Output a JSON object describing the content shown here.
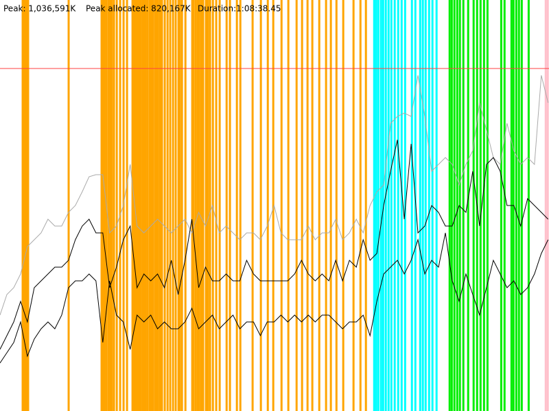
{
  "chart_data": {
    "type": "line",
    "peak": "Peak: 1,036,591K",
    "peak_allocated": "Peak allocated: 820,167K",
    "duration": "Duration:1:08:38.45",
    "xlim": [
      0,
      4118.45
    ],
    "ylim": [
      0,
      1200000
    ],
    "threshold": {
      "value": 1000000,
      "color": "#ff4040"
    },
    "x": [
      0,
      51.4,
      102.8,
      154.2,
      205.6,
      257,
      308.4,
      359.8,
      411.2,
      462.6,
      514,
      565.4,
      616.8,
      668.2,
      719.6,
      771,
      822.4,
      873.8,
      925.2,
      976.6,
      1028,
      1079.4,
      1130.8,
      1182.2,
      1233.6,
      1285,
      1336.4,
      1387.8,
      1439.2,
      1490.6,
      1542,
      1593.4,
      1644.8,
      1696.2,
      1747.6,
      1799,
      1850.4,
      1901.8,
      1953.2,
      2004.6,
      2056,
      2107.4,
      2158.8,
      2210.2,
      2261.6,
      2313,
      2364.4,
      2415.8,
      2467.2,
      2518.6,
      2570,
      2621.4,
      2672.8,
      2724.2,
      2775.6,
      2827,
      2878.4,
      2929.8,
      2981.2,
      3032.6,
      3084,
      3135.4,
      3186.8,
      3238.2,
      3289.6,
      3341,
      3392.4,
      3443.8,
      3495.2,
      3546.6,
      3598,
      3649.4,
      3700.8,
      3752.2,
      3803.6,
      3855,
      3906.4,
      3957.8,
      4009.2,
      4060.6,
      4112
    ],
    "series": [
      {
        "color": "#aaaaaa",
        "values": [
          280000,
          340000,
          360000,
          400000,
          480000,
          500000,
          520000,
          560000,
          540000,
          540000,
          580000,
          600000,
          640000,
          684000,
          690000,
          690000,
          520000,
          540000,
          600000,
          720000,
          540000,
          520000,
          540000,
          560000,
          540000,
          520000,
          540000,
          560000,
          520000,
          580000,
          540000,
          600000,
          520000,
          540000,
          520000,
          500000,
          520000,
          520000,
          500000,
          540000,
          600000,
          520000,
          500000,
          500000,
          500000,
          540000,
          500000,
          520000,
          520000,
          560000,
          500000,
          520000,
          560000,
          520000,
          600000,
          640000,
          660000,
          840000,
          860000,
          870000,
          860000,
          980000,
          860000,
          700000,
          720000,
          740000,
          720000,
          660000,
          720000,
          760000,
          900000,
          820000,
          740000,
          720000,
          840000,
          760000,
          720000,
          740000,
          720000,
          980000,
          900000
        ]
      },
      {
        "color": "#000000",
        "values": [
          180000,
          220000,
          260000,
          320000,
          260000,
          360000,
          380000,
          400000,
          420000,
          420000,
          440000,
          500000,
          540000,
          560000,
          520000,
          520000,
          360000,
          420000,
          500000,
          540000,
          360000,
          400000,
          380000,
          400000,
          360000,
          440000,
          340000,
          440000,
          560000,
          360000,
          420000,
          380000,
          380000,
          400000,
          380000,
          380000,
          440000,
          400000,
          380000,
          380000,
          380000,
          380000,
          380000,
          400000,
          440000,
          400000,
          380000,
          400000,
          380000,
          440000,
          380000,
          440000,
          420000,
          500000,
          440000,
          460000,
          600000,
          700000,
          792000,
          560000,
          780000,
          520000,
          540000,
          600000,
          580000,
          540000,
          540000,
          600000,
          580000,
          700000,
          540000,
          720000,
          740000,
          700000,
          600000,
          600000,
          540000,
          620000,
          600000,
          580000,
          560000
        ]
      },
      {
        "color": "#000000",
        "values": [
          140000,
          170000,
          200000,
          260000,
          160000,
          210000,
          240000,
          260000,
          240000,
          280000,
          360000,
          380000,
          380000,
          400000,
          380000,
          200000,
          380000,
          280000,
          260000,
          180000,
          280000,
          260000,
          280000,
          240000,
          260000,
          240000,
          240000,
          260000,
          300000,
          240000,
          260000,
          280000,
          240000,
          260000,
          280000,
          240000,
          260000,
          260000,
          220000,
          260000,
          260000,
          280000,
          260000,
          280000,
          260000,
          280000,
          260000,
          280000,
          280000,
          260000,
          240000,
          260000,
          260000,
          280000,
          220000,
          320000,
          400000,
          420000,
          440000,
          400000,
          440000,
          500000,
          400000,
          440000,
          420000,
          520000,
          380000,
          320000,
          400000,
          340000,
          280000,
          360000,
          440000,
          400000,
          360000,
          380000,
          340000,
          360000,
          400000,
          460000,
          500000
        ]
      }
    ],
    "events": [
      {
        "color": "#ffa500",
        "x": [
          170,
          180,
          191,
          201,
          211,
          515,
          762,
          773,
          783,
          798,
          814,
          824,
          839,
          855,
          876,
          901,
          927,
          953,
          994,
          1009,
          1020,
          1030,
          1045,
          1056,
          1071,
          1082,
          1092,
          1107,
          1123,
          1133,
          1148,
          1164,
          1174,
          1185,
          1200,
          1215,
          1236,
          1257,
          1277,
          1298,
          1318,
          1339,
          1349,
          1365,
          1391,
          1442,
          1452,
          1468,
          1483,
          1494,
          1509,
          1524,
          1545,
          1560,
          1576,
          1597,
          1622,
          1648,
          1700,
          1725,
          1777,
          1803,
          1895,
          1957,
          2009,
          2050,
          2112,
          2163,
          2225,
          2266,
          2307,
          2343,
          2395,
          2446,
          2482,
          2524,
          2575,
          2652,
          2704,
          2745
        ]
      },
      {
        "color": "#00ffff",
        "x": [
          2807,
          2822,
          2838,
          2858,
          2874,
          2894,
          2915,
          2936,
          2961,
          2987,
          3013,
          3039,
          3090,
          3116,
          3152,
          3172,
          3193,
          3219,
          3244,
          3275
        ]
      },
      {
        "color": "#00ee00",
        "x": [
          3373,
          3389,
          3409,
          3430,
          3450,
          3476,
          3512,
          3553,
          3579,
          3605,
          3631,
          3657,
          3760,
          3785,
          3837,
          3852,
          3873,
          3893,
          3914,
          3966
        ]
      },
      {
        "color": "#ffc0cb",
        "x": [
          4094,
          4109
        ]
      }
    ]
  }
}
